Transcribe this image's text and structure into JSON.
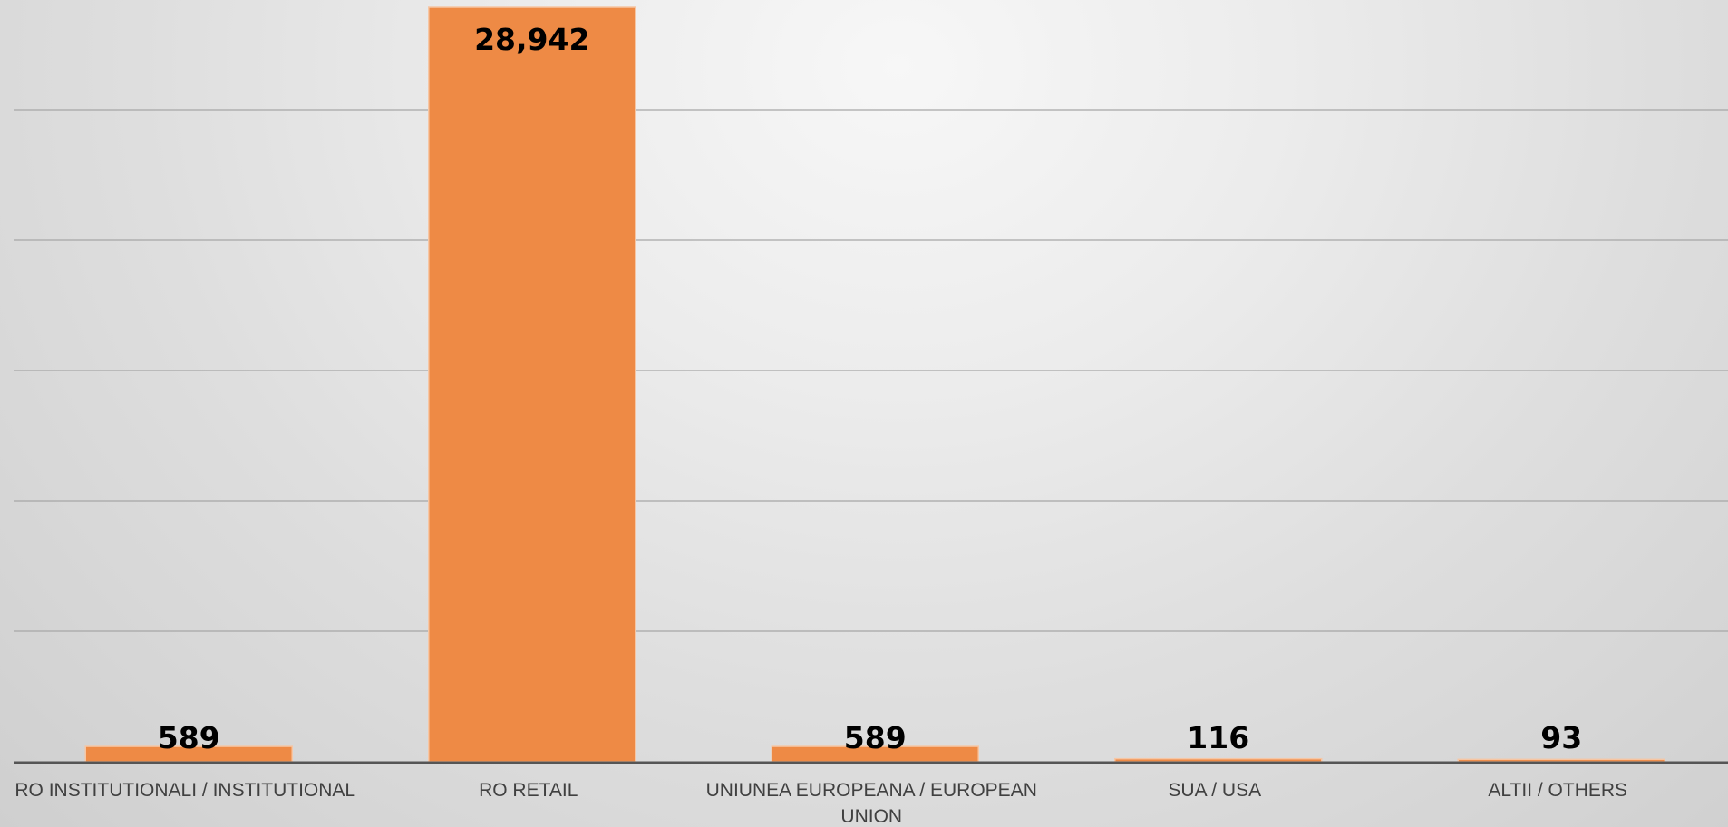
{
  "chart_data": {
    "type": "bar",
    "categories": [
      [
        "RO INSTITUTIONALI / INSTITUTIONAL"
      ],
      [
        "RO RETAIL"
      ],
      [
        "UNIUNEA EUROPEANA / EUROPEAN",
        "UNION"
      ],
      [
        "SUA / USA"
      ],
      [
        "ALTII / OTHERS"
      ]
    ],
    "values": [
      589,
      28942,
      589,
      116,
      93
    ],
    "value_labels": [
      "589",
      "28,942",
      "589",
      "116",
      "93"
    ],
    "title": "",
    "xlabel": "",
    "ylabel": "",
    "ylim": [
      0,
      29000
    ],
    "gridlines": 5,
    "grid": true,
    "legend": "none",
    "colors": {
      "bar_fill": "#ee8a45",
      "bar_stroke": "#f6c6a4",
      "gridline": "#a6a6a6",
      "axis": "#555555",
      "category_text": "#404040",
      "value_text": "#000000"
    }
  }
}
